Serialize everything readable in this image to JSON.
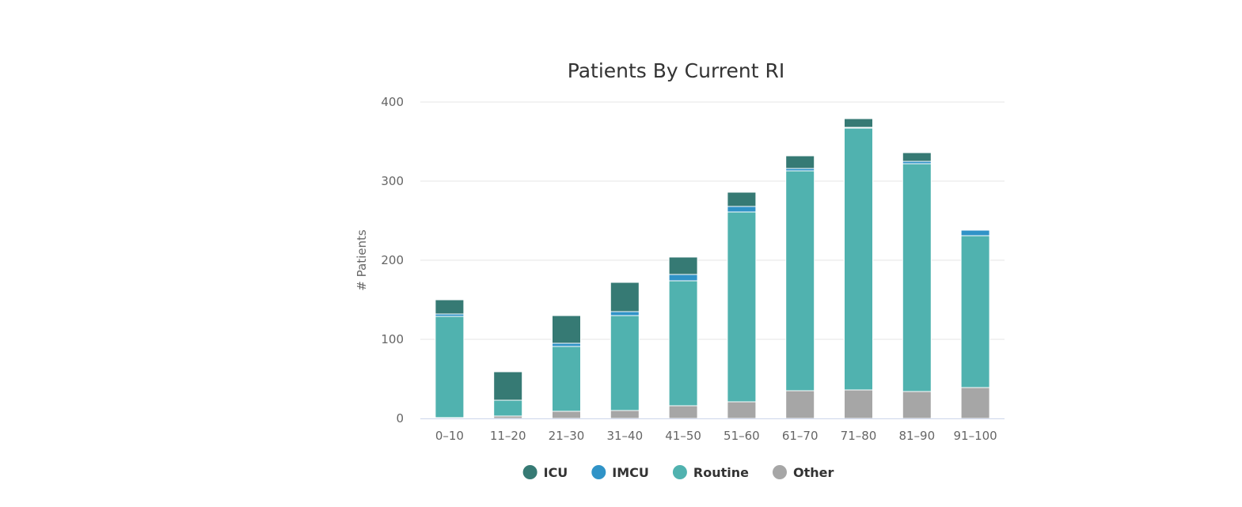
{
  "chart_data": {
    "type": "bar",
    "stacked": true,
    "title": "Patients By Current RI",
    "xlabel": "",
    "ylabel": "# Patients",
    "ylim": [
      0,
      400
    ],
    "yticks": [
      "0",
      "100",
      "200",
      "300",
      "400"
    ],
    "grid": true,
    "legend_position": "bottom-center",
    "categories": [
      "0–10",
      "11–20",
      "21–30",
      "31–40",
      "41–50",
      "51–60",
      "61–70",
      "71–80",
      "81–90",
      "91–100"
    ],
    "series": [
      {
        "name": "ICU",
        "color": "#367a74",
        "values": [
          18,
          36,
          35,
          37,
          22,
          18,
          16,
          11,
          11,
          1
        ]
      },
      {
        "name": "IMCU",
        "color": "#3093c7",
        "values": [
          3,
          0,
          4,
          5,
          8,
          7,
          3,
          1,
          3,
          7
        ]
      },
      {
        "name": "Routine",
        "color": "#50b2af",
        "values": [
          128,
          20,
          82,
          120,
          158,
          240,
          278,
          331,
          288,
          192
        ]
      },
      {
        "name": "Other",
        "color": "#a6a6a6",
        "values": [
          1,
          3,
          9,
          10,
          16,
          21,
          35,
          36,
          34,
          39
        ]
      }
    ]
  }
}
